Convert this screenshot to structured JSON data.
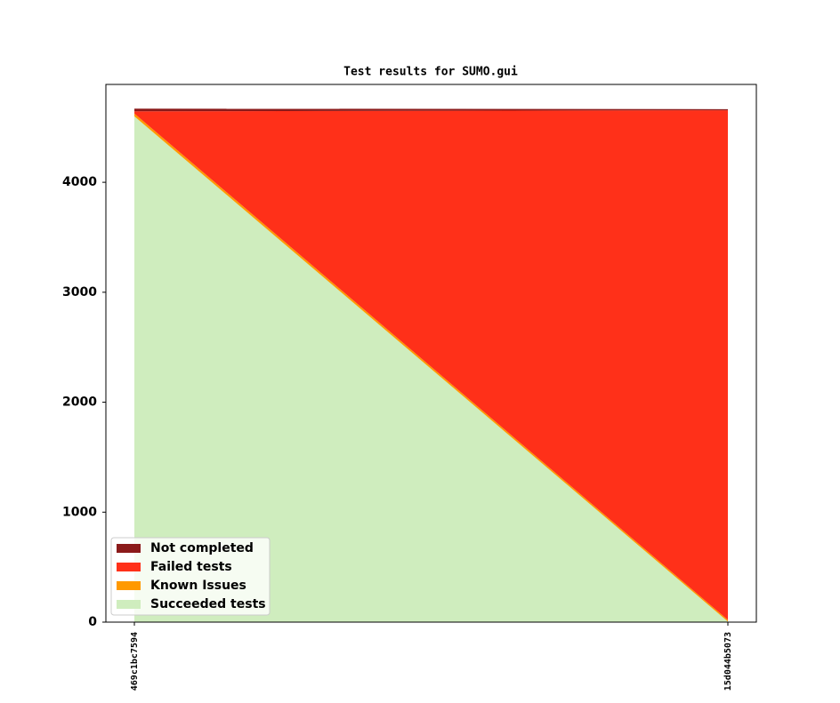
{
  "chart_data": {
    "type": "stacked_area",
    "title": "Test results for SUMO.gui",
    "categories": [
      "469c1bc7594",
      "15d044b5073"
    ],
    "series": [
      {
        "name": "Succeeded tests",
        "color": "#cfedbe",
        "values": [
          4600,
          5
        ]
      },
      {
        "name": "Known Issues",
        "color": "#ff9900",
        "values": [
          25,
          15
        ]
      },
      {
        "name": "Failed tests",
        "color": "#ff3019",
        "values": [
          20,
          4635
        ]
      },
      {
        "name": "Not completed",
        "color": "#8b1a1a",
        "values": [
          25,
          10
        ]
      }
    ],
    "ylim": [
      0,
      4890
    ],
    "yticks": [
      0,
      1000,
      2000,
      3000,
      4000
    ],
    "grid": false,
    "legend": "lower left"
  }
}
